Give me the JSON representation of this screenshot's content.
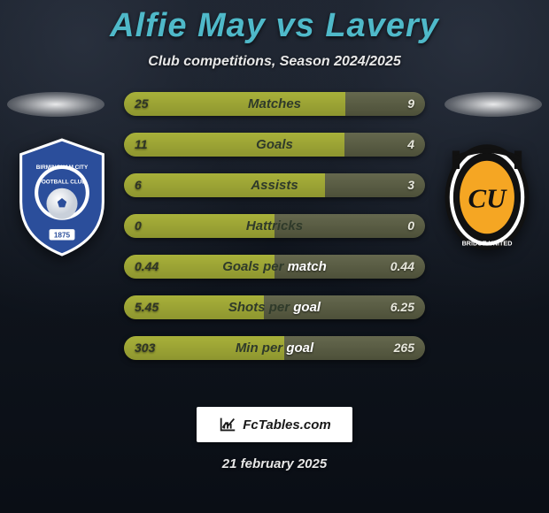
{
  "title": "Alfie May vs Lavery",
  "subtitle": "Club competitions, Season 2024/2025",
  "footer_date": "21 february 2025",
  "badge_text": "FcTables.com",
  "colors": {
    "left_bar": "#a8b13a",
    "right_bar": "#65684e",
    "title": "#4fb9c9",
    "val_left_text": "#2e3426",
    "val_right_text": "#e8e8dd"
  },
  "crest_left": {
    "name": "Birmingham City Football Club",
    "year": "1875",
    "primary": "#2b4e9b",
    "secondary": "#ffffff"
  },
  "crest_right": {
    "name": "Cambridge United",
    "initials": "CU",
    "primary": "#f5a623",
    "secondary": "#111111"
  },
  "rows": [
    {
      "label": "Matches",
      "left": "25",
      "right": "9",
      "left_pct": 73.5
    },
    {
      "label": "Goals",
      "left": "11",
      "right": "4",
      "left_pct": 73.3
    },
    {
      "label": "Assists",
      "left": "6",
      "right": "3",
      "left_pct": 66.7
    },
    {
      "label": "Hattricks",
      "left": "0",
      "right": "0",
      "left_pct": 50.0
    },
    {
      "label": "Goals per match",
      "left": "0.44",
      "right": "0.44",
      "left_pct": 50.0
    },
    {
      "label": "Shots per goal",
      "left": "5.45",
      "right": "6.25",
      "left_pct": 46.6
    },
    {
      "label": "Min per goal",
      "left": "303",
      "right": "265",
      "left_pct": 53.3
    }
  ]
}
